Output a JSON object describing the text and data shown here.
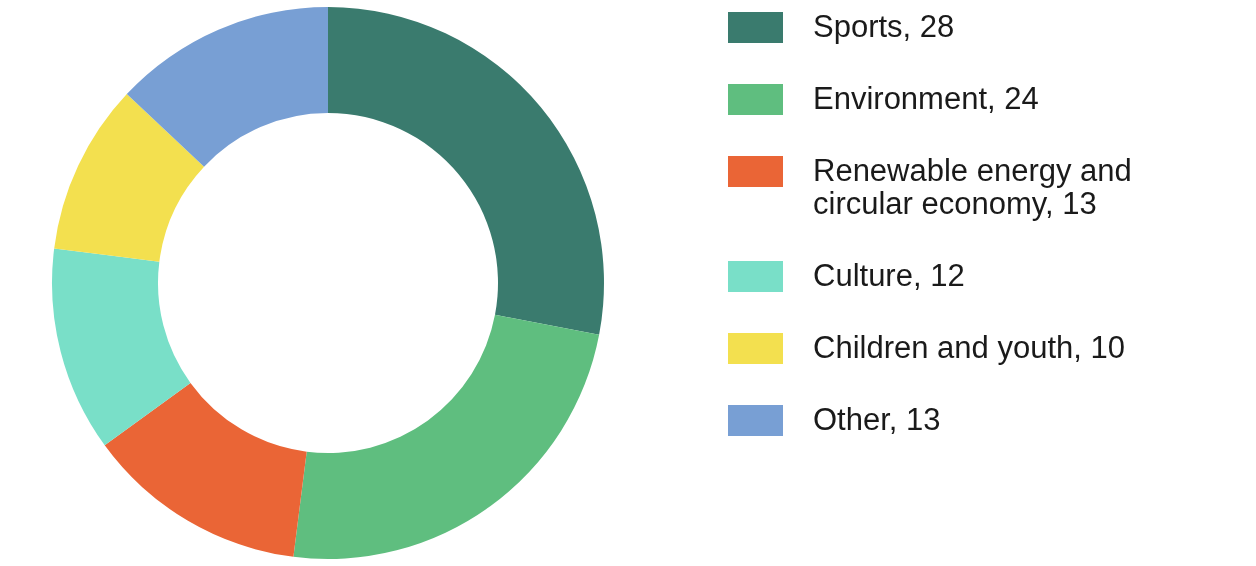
{
  "chart_data": {
    "type": "donut",
    "categories": [
      "Sports, 28",
      "Environment, 24",
      "Renewable energy and circular economy, 13",
      "Culture, 12",
      "Children and youth, 10",
      "Other, 13"
    ],
    "values": [
      28,
      24,
      13,
      12,
      10,
      13
    ],
    "colors": [
      "#3a7b6e",
      "#5fbe7f",
      "#ea6536",
      "#79dfc8",
      "#f3e04f",
      "#789fd4"
    ],
    "legend": "right"
  }
}
